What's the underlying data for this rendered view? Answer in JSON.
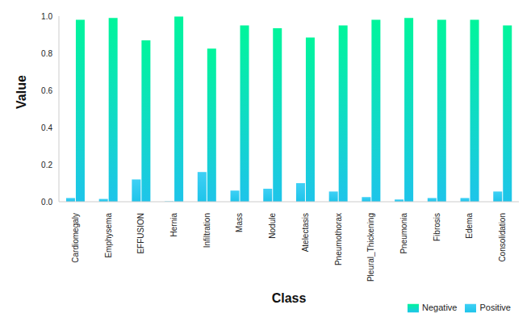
{
  "chart_data": {
    "type": "bar",
    "x_label": "Class",
    "y_label": "Value",
    "categories": [
      "Cardiomegaly",
      "Emphysema",
      "EFFUSION",
      "Hernia",
      "Infiltration",
      "Mass",
      "Nodule",
      "Atelectasis",
      "Pneumothorax",
      "Pleural_Thickening",
      "Pneumonia",
      "Fibrosis",
      "Edema",
      "Consolidation"
    ],
    "series": [
      {
        "name": "Positive",
        "color": "#3fd0f5",
        "values": [
          0.02,
          0.015,
          0.12,
          0.002,
          0.16,
          0.06,
          0.07,
          0.1,
          0.055,
          0.025,
          0.012,
          0.02,
          0.02,
          0.055
        ]
      },
      {
        "name": "Negative",
        "color": "#00f59b",
        "values": [
          0.98,
          0.99,
          0.87,
          0.998,
          0.825,
          0.95,
          0.935,
          0.885,
          0.95,
          0.98,
          0.99,
          0.98,
          0.98,
          0.95
        ]
      }
    ],
    "ylim": [
      0,
      1
    ],
    "yticks": [
      {
        "value": 0,
        "label": "0.0"
      },
      0.2,
      0.4,
      0.6,
      0.8,
      {
        "value": 1,
        "label": "1.0"
      }
    ],
    "legend": "bottom-right",
    "grid": false
  }
}
